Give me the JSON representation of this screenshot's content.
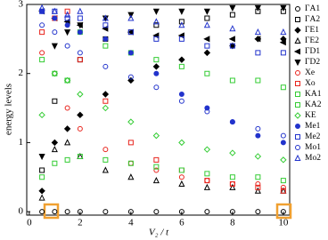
{
  "chart_data": {
    "type": "scatter",
    "xlabel": "V₂ / t",
    "ylabel": "energy levels",
    "xlim": [
      -0.1,
      10.25
    ],
    "ylim": [
      -0.05,
      3
    ],
    "xticks": [
      0,
      2,
      4,
      6,
      8,
      10
    ],
    "yticks": [
      0,
      1,
      2,
      3
    ],
    "x": [
      0.5,
      1,
      1.5,
      2,
      3,
      4,
      5,
      6,
      7,
      8,
      9,
      10
    ],
    "series": [
      {
        "name": "ΓA1",
        "color": "#000000",
        "marker": "circle",
        "filled": false,
        "values": [
          0,
          0,
          0,
          0,
          0,
          0,
          0,
          0,
          0,
          0,
          0,
          0
        ]
      },
      {
        "name": "ΓA2",
        "color": "#000000",
        "marker": "square",
        "filled": false,
        "values": [
          0.6,
          1.6,
          1.9,
          2.2,
          2.5,
          2.6,
          2.7,
          2.75,
          2.8,
          2.85,
          2.9,
          2.9
        ]
      },
      {
        "name": "ΓE1",
        "color": "#000000",
        "marker": "diamond",
        "filled": true,
        "values": [
          0.3,
          1.0,
          1.2,
          1.4,
          1.7,
          1.9,
          2.1,
          2.2,
          2.3,
          2.4,
          2.5,
          2.5
        ]
      },
      {
        "name": "ΓE2",
        "color": "#000000",
        "marker": "triangle-up",
        "filled": false,
        "values": [
          0.2,
          0.9,
          1.0,
          0.8,
          0.6,
          0.5,
          0.45,
          0.4,
          0.35,
          0.35,
          0.3,
          0.3
        ]
      },
      {
        "name": "ΓD1",
        "color": "#000000",
        "marker": "triangle-left",
        "filled": true,
        "values": [
          2.9,
          2.8,
          2.75,
          2.7,
          2.65,
          2.6,
          2.55,
          2.55,
          2.5,
          2.5,
          2.5,
          2.45
        ]
      },
      {
        "name": "ΓD2",
        "color": "#000000",
        "marker": "triangle-down",
        "filled": true,
        "values": [
          0.8,
          2.4,
          2.6,
          2.7,
          2.8,
          2.85,
          2.9,
          2.9,
          2.9,
          2.95,
          2.95,
          2.95
        ]
      },
      {
        "name": "Xe",
        "color": "#e8231c",
        "marker": "circle",
        "filled": false,
        "values": [
          2.3,
          2.0,
          1.5,
          1.2,
          0.9,
          0.7,
          0.6,
          0.5,
          0.45,
          0.4,
          0.4,
          0.35
        ]
      },
      {
        "name": "Xo",
        "color": "#e8231c",
        "marker": "square",
        "filled": false,
        "values": [
          2.6,
          2.8,
          2.9,
          2.2,
          1.6,
          1.0,
          0.75,
          0.6,
          0.45,
          0.4,
          0.35,
          0.3
        ]
      },
      {
        "name": "KA1",
        "color": "#33cc33",
        "marker": "square",
        "filled": false,
        "values": [
          0.5,
          0.7,
          0.75,
          0.8,
          0.75,
          0.7,
          0.65,
          0.6,
          0.55,
          0.5,
          0.5,
          0.45
        ]
      },
      {
        "name": "KA2",
        "color": "#33cc33",
        "marker": "square",
        "filled": false,
        "values": [
          2.2,
          2.0,
          1.9,
          2.6,
          2.4,
          2.3,
          2.2,
          2.1,
          2.0,
          1.9,
          1.9,
          1.8
        ]
      },
      {
        "name": "KE",
        "color": "#33cc33",
        "marker": "diamond",
        "filled": false,
        "values": [
          1.4,
          2.0,
          1.9,
          1.7,
          1.5,
          1.3,
          1.1,
          1.0,
          0.9,
          0.85,
          0.8,
          0.75
        ]
      },
      {
        "name": "Me1",
        "color": "#2233cc",
        "marker": "circle",
        "filled": true,
        "values": [
          2.9,
          2.8,
          2.7,
          2.6,
          2.5,
          2.3,
          2.0,
          1.7,
          1.5,
          1.3,
          1.1,
          1.0
        ]
      },
      {
        "name": "Me2",
        "color": "#2233cc",
        "marker": "square",
        "filled": false,
        "values": [
          2.9,
          2.9,
          2.8,
          2.8,
          2.7,
          2.6,
          2.5,
          2.5,
          2.4,
          2.4,
          2.3,
          2.3
        ]
      },
      {
        "name": "Mo1",
        "color": "#2233cc",
        "marker": "circle",
        "filled": false,
        "values": [
          2.7,
          2.6,
          2.4,
          2.3,
          2.1,
          1.95,
          1.8,
          1.6,
          1.45,
          1.3,
          1.2,
          1.1
        ]
      },
      {
        "name": "Mo2",
        "color": "#2233cc",
        "marker": "triangle-up",
        "filled": false,
        "values": [
          2.95,
          2.9,
          2.85,
          2.9,
          2.8,
          2.8,
          2.75,
          2.7,
          2.7,
          2.65,
          2.6,
          2.6
        ]
      }
    ]
  }
}
